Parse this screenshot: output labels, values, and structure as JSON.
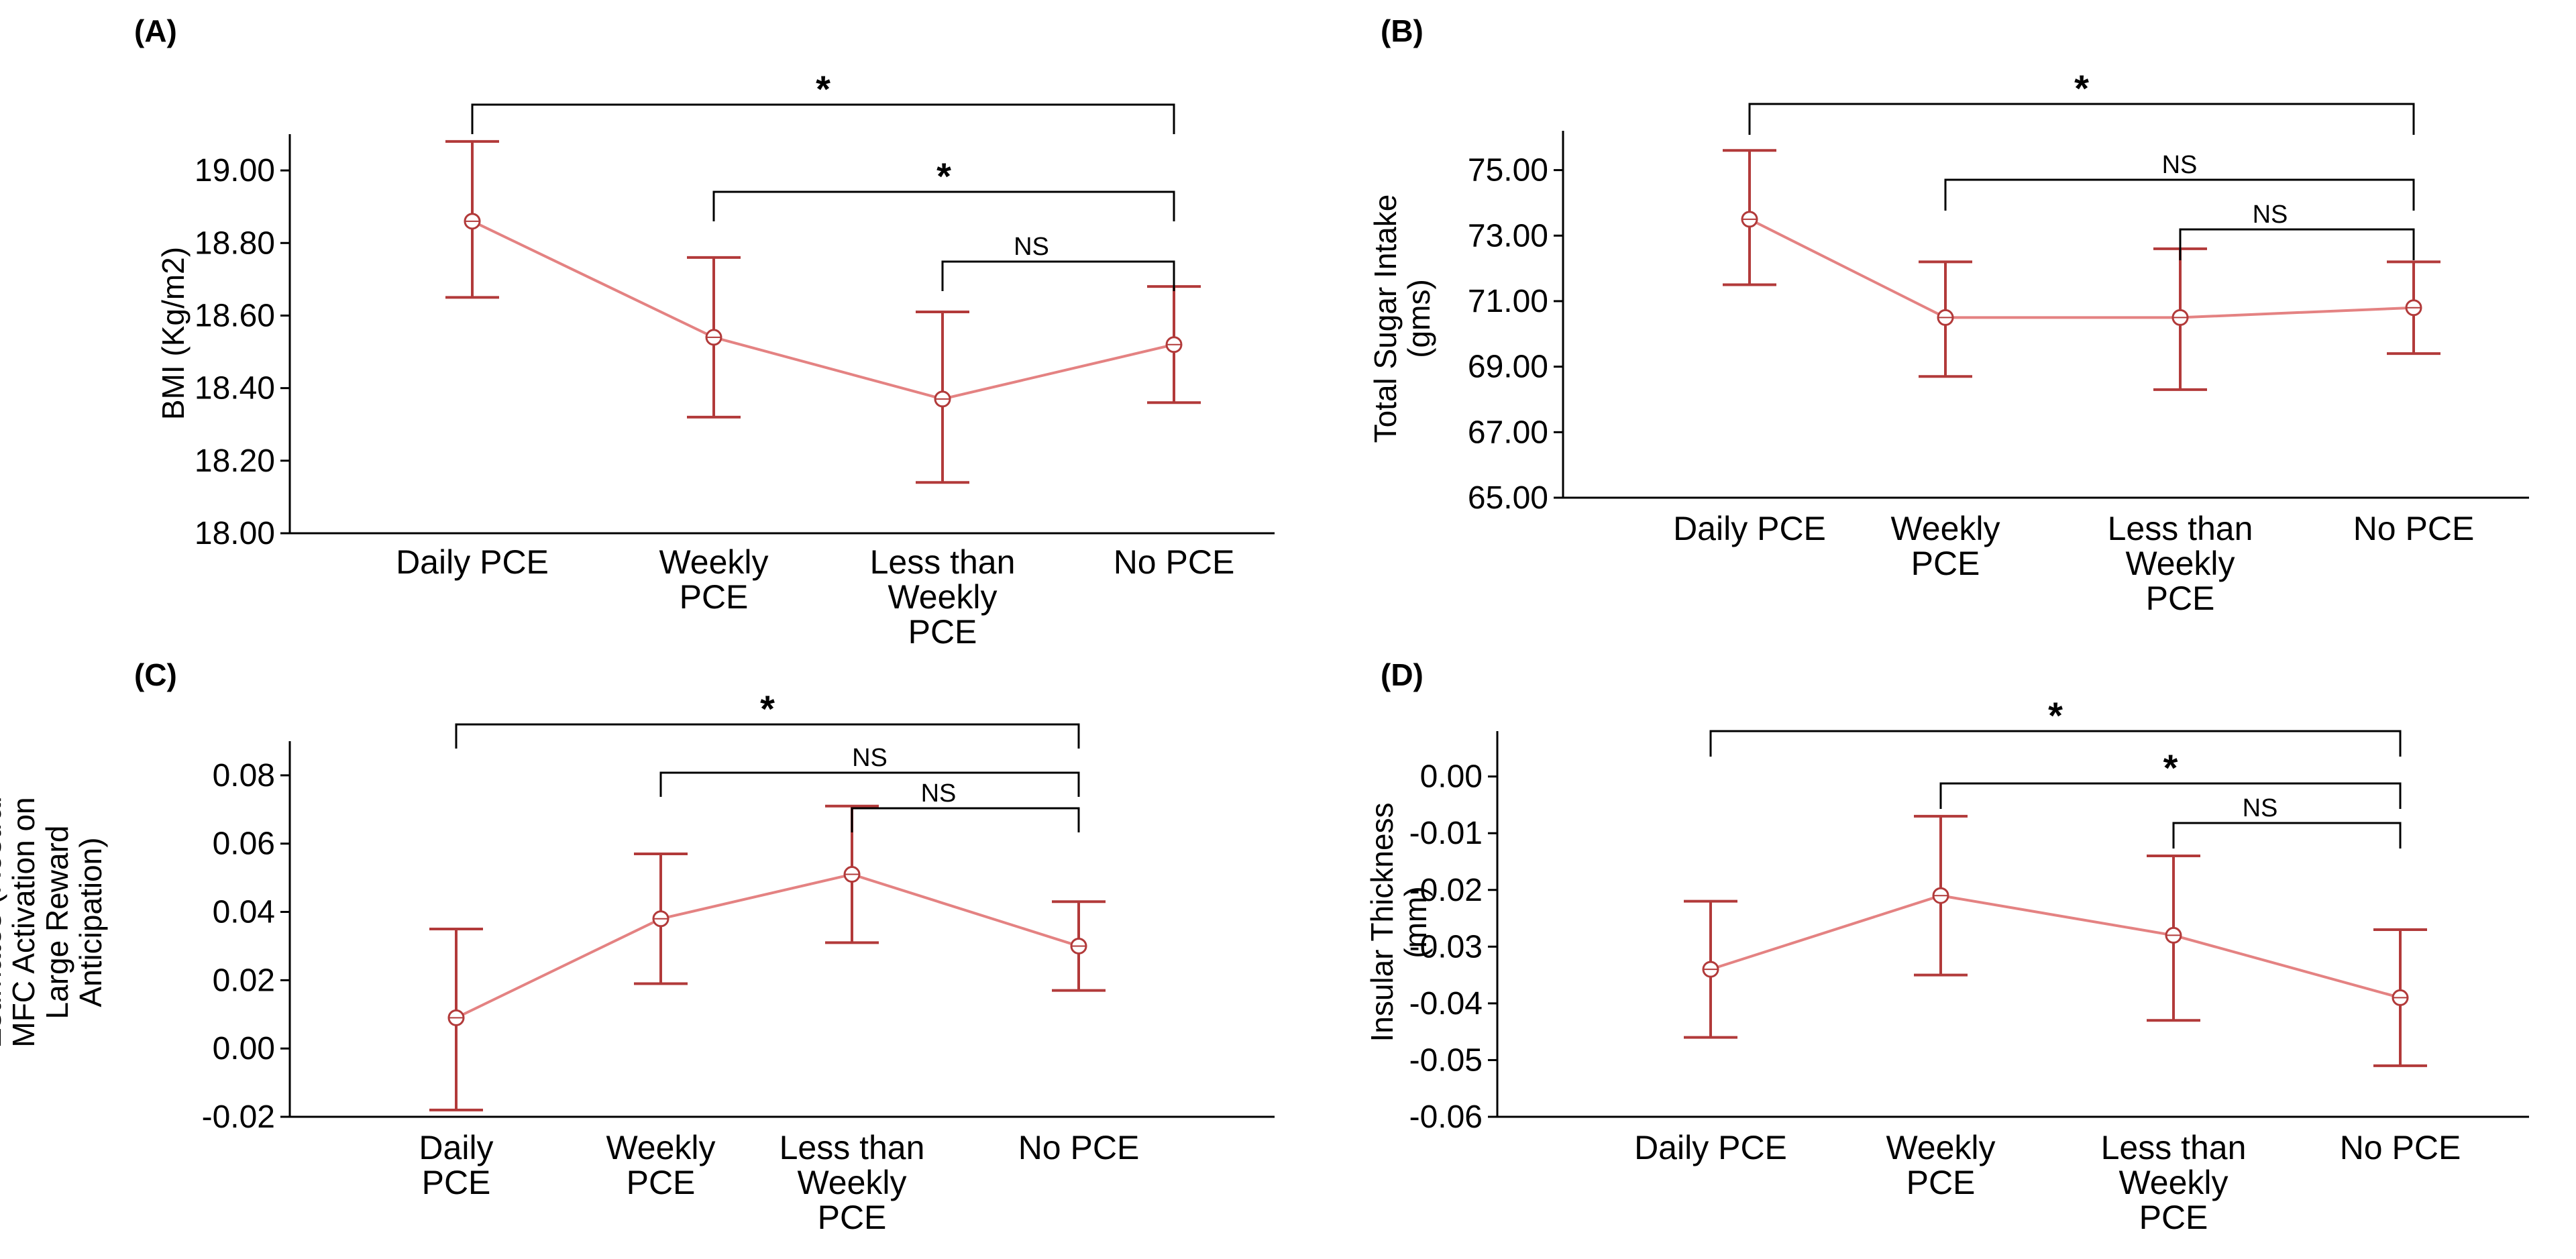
{
  "colors": {
    "line": "#e48282",
    "error_bar": "#b23a3a",
    "axis": "#000000",
    "bracket": "#000000"
  },
  "chart_data": [
    {
      "panel": "(A)",
      "type": "line",
      "ylabel": [
        "BMI (Kg/m2)"
      ],
      "ylim": [
        18.0,
        19.1
      ],
      "yticks": [
        18.0,
        18.2,
        18.4,
        18.6,
        18.8,
        19.0
      ],
      "ytick_labels": [
        "18.00",
        "18.20",
        "18.40",
        "18.60",
        "18.80",
        "19.00"
      ],
      "categories": [
        [
          "Daily PCE"
        ],
        [
          "Weekly",
          "PCE"
        ],
        [
          "Less than",
          "Weekly",
          "PCE"
        ],
        [
          "No PCE"
        ]
      ],
      "values": [
        18.86,
        18.54,
        18.37,
        18.52
      ],
      "err_low": [
        18.65,
        18.32,
        18.14,
        18.36
      ],
      "err_high": [
        19.08,
        18.76,
        18.61,
        18.68
      ],
      "significance": [
        {
          "from": 0,
          "to": 3,
          "label": "*"
        },
        {
          "from": 1,
          "to": 3,
          "label": "*"
        },
        {
          "from": 2,
          "to": 3,
          "label": "NS"
        }
      ]
    },
    {
      "panel": "(B)",
      "type": "line",
      "ylabel": [
        "Total Sugar Intake",
        "(gms)"
      ],
      "ylim": [
        65.0,
        76.2
      ],
      "yticks": [
        65,
        67,
        69,
        71,
        73,
        75
      ],
      "ytick_labels": [
        "65.00",
        "67.00",
        "69.00",
        "71.00",
        "73.00",
        "75.00"
      ],
      "categories": [
        [
          "Daily PCE"
        ],
        [
          "Weekly",
          "PCE"
        ],
        [
          "Less than",
          "Weekly",
          "PCE"
        ],
        [
          "No PCE"
        ]
      ],
      "values": [
        73.5,
        70.5,
        70.5,
        70.8
      ],
      "err_low": [
        71.5,
        68.7,
        68.3,
        69.4
      ],
      "err_high": [
        75.6,
        72.2,
        72.6,
        72.2
      ],
      "significance": [
        {
          "from": 0,
          "to": 3,
          "label": "*"
        },
        {
          "from": 1,
          "to": 3,
          "label": "NS"
        },
        {
          "from": 2,
          "to": 3,
          "label": "NS"
        }
      ]
    },
    {
      "panel": "(C)",
      "type": "line",
      "ylabel": [
        "Estimates (Rostral",
        "MFC Activation on",
        "Large Reward",
        "Anticipation)"
      ],
      "ylim": [
        -0.02,
        0.09
      ],
      "yticks": [
        -0.02,
        0.0,
        0.02,
        0.04,
        0.06,
        0.08
      ],
      "ytick_labels": [
        "-0.02",
        "0.00",
        "0.02",
        "0.04",
        "0.06",
        "0.08"
      ],
      "categories": [
        [
          "Daily",
          "PCE"
        ],
        [
          "Weekly",
          "PCE"
        ],
        [
          "Less than",
          "Weekly",
          "PCE"
        ],
        [
          "No PCE"
        ]
      ],
      "values": [
        0.009,
        0.038,
        0.051,
        0.03
      ],
      "err_low": [
        -0.018,
        0.019,
        0.031,
        0.017
      ],
      "err_high": [
        0.035,
        0.057,
        0.071,
        0.043
      ],
      "significance": [
        {
          "from": 0,
          "to": 3,
          "label": "*"
        },
        {
          "from": 1,
          "to": 3,
          "label": "NS"
        },
        {
          "from": 2,
          "to": 3,
          "label": "NS"
        }
      ]
    },
    {
      "panel": "(D)",
      "type": "line",
      "ylabel": [
        "Insular Thickness",
        "(mm)"
      ],
      "ylim": [
        -0.06,
        0.008
      ],
      "yticks": [
        -0.06,
        -0.05,
        -0.04,
        -0.03,
        -0.02,
        -0.01,
        0.0
      ],
      "ytick_labels": [
        "-0.06",
        "-0.05",
        "-0.04",
        "-0.03",
        "-0.02",
        "-0.01",
        "0.00"
      ],
      "categories": [
        [
          "Daily PCE"
        ],
        [
          "Weekly",
          "PCE"
        ],
        [
          "Less than",
          "Weekly",
          "PCE"
        ],
        [
          "No PCE"
        ]
      ],
      "values": [
        -0.034,
        -0.021,
        -0.028,
        -0.039
      ],
      "err_low": [
        -0.046,
        -0.035,
        -0.043,
        -0.051
      ],
      "err_high": [
        -0.022,
        -0.007,
        -0.014,
        -0.027
      ],
      "significance": [
        {
          "from": 0,
          "to": 3,
          "label": "*"
        },
        {
          "from": 1,
          "to": 3,
          "label": "*"
        },
        {
          "from": 2,
          "to": 3,
          "label": "NS"
        }
      ]
    }
  ]
}
